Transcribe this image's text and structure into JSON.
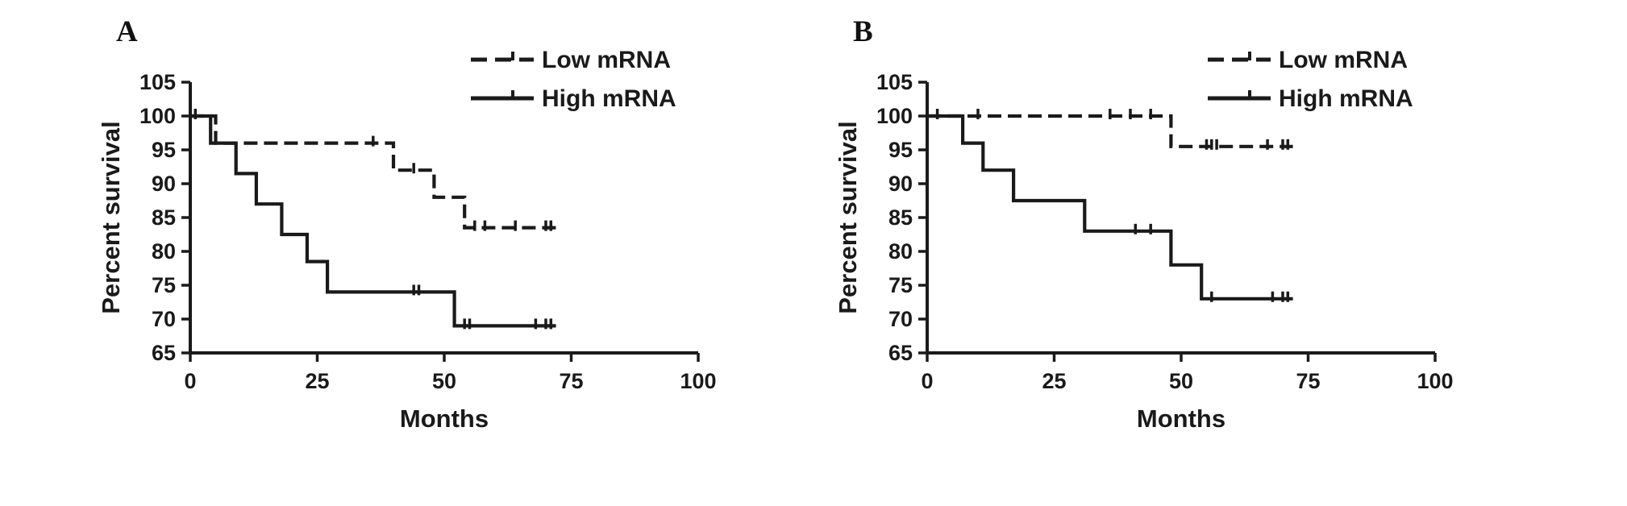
{
  "figure": {
    "panels": [
      {
        "label": "A"
      },
      {
        "label": "B"
      }
    ]
  },
  "colors": {
    "line": "#1a1a1a",
    "background": "#ffffff"
  },
  "chart_data": [
    {
      "type": "line",
      "subtype": "kaplan_meier_step",
      "panel": "A",
      "title": "",
      "xlabel": "Months",
      "ylabel": "Percent survival",
      "xlim": [
        0,
        100
      ],
      "ylim": [
        65,
        105
      ],
      "xticks": [
        0,
        25,
        50,
        75,
        100
      ],
      "yticks": [
        65,
        70,
        75,
        80,
        85,
        90,
        95,
        100,
        105
      ],
      "grid": false,
      "legend_position": "top-right",
      "series": [
        {
          "name": "Low mRNA",
          "line_style": "dashed",
          "color": "#1a1a1a",
          "steps": [
            [
              0,
              100
            ],
            [
              5,
              100
            ],
            [
              5,
              96
            ],
            [
              40,
              96
            ],
            [
              40,
              92
            ],
            [
              48,
              92
            ],
            [
              48,
              88
            ],
            [
              54,
              88
            ],
            [
              54,
              83.5
            ],
            [
              72,
              83.5
            ]
          ],
          "censors": [
            [
              1,
              100
            ],
            [
              36,
              96
            ],
            [
              44,
              92
            ],
            [
              56,
              83.5
            ],
            [
              58,
              83.5
            ],
            [
              64,
              83.5
            ],
            [
              70,
              83.5
            ],
            [
              71,
              83.5
            ]
          ]
        },
        {
          "name": "High mRNA",
          "line_style": "solid",
          "color": "#1a1a1a",
          "steps": [
            [
              0,
              100
            ],
            [
              4,
              100
            ],
            [
              4,
              96
            ],
            [
              9,
              96
            ],
            [
              9,
              91.5
            ],
            [
              13,
              91.5
            ],
            [
              13,
              87
            ],
            [
              18,
              87
            ],
            [
              18,
              82.5
            ],
            [
              23,
              82.5
            ],
            [
              23,
              78.5
            ],
            [
              27,
              78.5
            ],
            [
              27,
              74
            ],
            [
              52,
              74
            ],
            [
              52,
              69
            ],
            [
              72,
              69
            ]
          ],
          "censors": [
            [
              44,
              74
            ],
            [
              45,
              74
            ],
            [
              54,
              69
            ],
            [
              55,
              69
            ],
            [
              68,
              69
            ],
            [
              70,
              69
            ],
            [
              71,
              69
            ]
          ]
        }
      ]
    },
    {
      "type": "line",
      "subtype": "kaplan_meier_step",
      "panel": "B",
      "title": "",
      "xlabel": "Months",
      "ylabel": "Percent survival",
      "xlim": [
        0,
        100
      ],
      "ylim": [
        65,
        105
      ],
      "xticks": [
        0,
        25,
        50,
        75,
        100
      ],
      "yticks": [
        65,
        70,
        75,
        80,
        85,
        90,
        95,
        100,
        105
      ],
      "grid": false,
      "legend_position": "top-right",
      "series": [
        {
          "name": "Low mRNA",
          "line_style": "dashed",
          "color": "#1a1a1a",
          "steps": [
            [
              0,
              100
            ],
            [
              48,
              100
            ],
            [
              48,
              95.5
            ],
            [
              72,
              95.5
            ]
          ],
          "censors": [
            [
              2,
              100
            ],
            [
              10,
              100
            ],
            [
              36,
              100
            ],
            [
              40,
              100
            ],
            [
              44,
              100
            ],
            [
              55,
              95.5
            ],
            [
              56,
              95.5
            ],
            [
              57,
              95.5
            ],
            [
              67,
              95.5
            ],
            [
              70,
              95.5
            ],
            [
              71,
              95.5
            ]
          ]
        },
        {
          "name": "High mRNA",
          "line_style": "solid",
          "color": "#1a1a1a",
          "steps": [
            [
              0,
              100
            ],
            [
              7,
              100
            ],
            [
              7,
              96
            ],
            [
              11,
              96
            ],
            [
              11,
              92
            ],
            [
              17,
              92
            ],
            [
              17,
              87.5
            ],
            [
              31,
              87.5
            ],
            [
              31,
              83
            ],
            [
              48,
              83
            ],
            [
              48,
              78
            ],
            [
              54,
              78
            ],
            [
              54,
              73
            ],
            [
              72,
              73
            ]
          ],
          "censors": [
            [
              41,
              83
            ],
            [
              44,
              83
            ],
            [
              56,
              73
            ],
            [
              68,
              73
            ],
            [
              70,
              73
            ],
            [
              71,
              73
            ]
          ]
        }
      ]
    }
  ]
}
